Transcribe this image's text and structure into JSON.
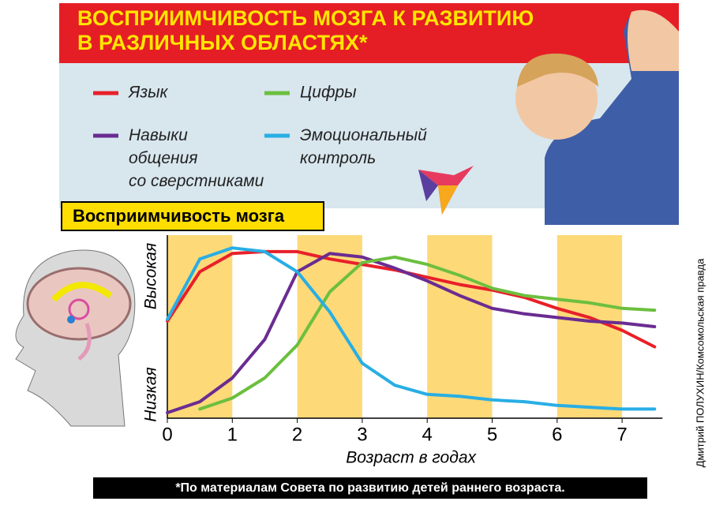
{
  "title": "ВОСПРИИМЧИВОСТЬ МОЗГА К РАЗВИТИЮ\nВ РАЗЛИЧНЫХ ОБЛАСТЯХ*",
  "chart_data": {
    "type": "line",
    "title": "Восприимчивость мозга",
    "x": [
      0,
      0.5,
      1,
      1.5,
      2,
      2.5,
      3,
      3.5,
      4,
      4.5,
      5,
      5.5,
      6,
      6.5,
      7,
      7.5
    ],
    "series": [
      {
        "name": "Язык",
        "color": "#e8202a",
        "values": [
          53,
          80,
          90,
          91,
          91,
          87,
          84,
          81,
          77,
          73,
          70,
          66,
          60,
          55,
          48,
          39
        ]
      },
      {
        "name": "Навыки\nобщения\nсо сверстниками",
        "color": "#6a2c91",
        "values": [
          3,
          9,
          22,
          43,
          80,
          90,
          88,
          82,
          75,
          67,
          60,
          57,
          55,
          53,
          52,
          50
        ]
      },
      {
        "name": "Цифры",
        "color": "#6cbf3f",
        "values": [
          null,
          5,
          11,
          22,
          40,
          69,
          85,
          88,
          84,
          78,
          71,
          67,
          65,
          63,
          60,
          59
        ]
      },
      {
        "name": "Эмоциональный\nконтроль",
        "color": "#28aee4",
        "values": [
          54,
          87,
          93,
          91,
          80,
          58,
          30,
          18,
          13,
          12,
          10,
          9,
          7,
          6,
          5,
          5
        ]
      }
    ],
    "xlim": [
      0,
      7.5
    ],
    "xticks": [
      0,
      1,
      2,
      3,
      4,
      5,
      6,
      7
    ],
    "ylim": [
      0,
      100
    ],
    "x_label": "Возраст в годах",
    "y_low_label": "Низкая",
    "y_high_label": "Высокая",
    "bands": true
  },
  "footnote": "*По материалам Совета по развитию детей раннего возраста.",
  "credit": "Дмитрий ПОЛУХИН/Комсомольская правда"
}
